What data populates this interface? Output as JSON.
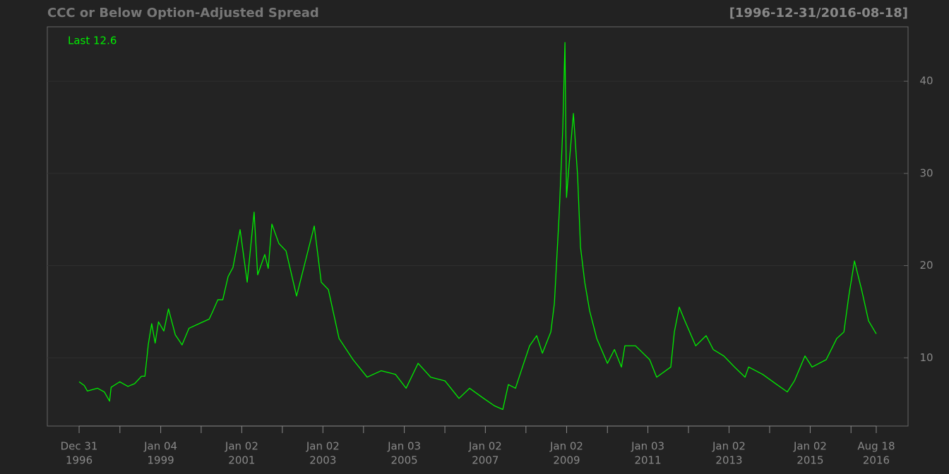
{
  "chart_data": {
    "type": "line",
    "title": "CCC or Below Option-Adjusted Spread",
    "subtitle": "[1996-12-31/2016-08-18]",
    "annotation": "Last 12.6",
    "grid": true,
    "xlim": [
      "1996-03-20",
      "2017-05-31"
    ],
    "ylim": [
      2.6,
      45.9
    ],
    "yticks": [
      10,
      20,
      30,
      40
    ],
    "xticks": [
      {
        "value": "1996-12-31",
        "label": [
          "Dec 31",
          "1996"
        ]
      },
      {
        "value": "1999-01-04",
        "label": [
          "Jan 04",
          "1999"
        ]
      },
      {
        "value": "2001-01-02",
        "label": [
          "Jan 02",
          "2001"
        ]
      },
      {
        "value": "2003-01-02",
        "label": [
          "Jan 02",
          "2003"
        ]
      },
      {
        "value": "2005-01-03",
        "label": [
          "Jan 03",
          "2005"
        ]
      },
      {
        "value": "2007-01-02",
        "label": [
          "Jan 02",
          "2007"
        ]
      },
      {
        "value": "2009-01-02",
        "label": [
          "Jan 02",
          "2009"
        ]
      },
      {
        "value": "2011-01-03",
        "label": [
          "Jan 03",
          "2011"
        ]
      },
      {
        "value": "2013-01-02",
        "label": [
          "Jan 02",
          "2013"
        ]
      },
      {
        "value": "2015-01-02",
        "label": [
          "Jan 02",
          "2015"
        ]
      },
      {
        "value": "2016-08-18",
        "label": [
          "Aug 18",
          "2016"
        ]
      }
    ],
    "xminorticks": [
      "1998-01-02",
      "2000-01-03",
      "2002-01-02",
      "2004-01-02",
      "2006-01-03",
      "2008-01-02",
      "2010-01-04",
      "2012-01-03",
      "2014-01-02",
      "2016-01-04"
    ],
    "series": [
      {
        "name": "CCC or Below Option-Adjusted Spread",
        "color": "#00ee00",
        "x": [
          "1996-12-31",
          "1997-02-15",
          "1997-03-15",
          "1997-06-15",
          "1997-08-15",
          "1997-10-01",
          "1997-10-15",
          "1998-01-01",
          "1998-03-15",
          "1998-05-15",
          "1998-07-15",
          "1998-08-15",
          "1998-09-15",
          "1998-10-15",
          "1998-11-15",
          "1998-12-15",
          "1999-02-01",
          "1999-03-15",
          "1999-05-15",
          "1999-07-15",
          "1999-09-15",
          "2000-01-01",
          "2000-03-15",
          "2000-04-15",
          "2000-06-01",
          "2000-07-15",
          "2000-09-01",
          "2000-10-15",
          "2000-12-18",
          "2001-02-20",
          "2001-04-23",
          "2001-05-25",
          "2001-07-28",
          "2001-08-28",
          "2001-09-30",
          "2001-12-02",
          "2002-02-04",
          "2002-05-10",
          "2002-07-12",
          "2002-10-16",
          "2002-12-18",
          "2003-02-20",
          "2003-05-27",
          "2003-09-30",
          "2004-02-04",
          "2004-06-10",
          "2004-10-16",
          "2005-01-19",
          "2005-05-07",
          "2005-08-28",
          "2006-01-04",
          "2006-05-10",
          "2006-08-13",
          "2006-12-18",
          "2007-03-24",
          "2007-06-08",
          "2007-07-28",
          "2007-09-30",
          "2007-12-02",
          "2008-02-04",
          "2008-04-08",
          "2008-05-29",
          "2008-08-13",
          "2008-09-14",
          "2008-10-28",
          "2008-11-29",
          "2008-12-18",
          "2009-01-01",
          "2009-01-26",
          "2009-03-04",
          "2009-04-11",
          "2009-05-07",
          "2009-06-14",
          "2009-07-28",
          "2009-09-30",
          "2010-01-04",
          "2010-03-08",
          "2010-05-10",
          "2010-06-10",
          "2010-09-14",
          "2011-01-19",
          "2011-03-23",
          "2011-07-28",
          "2011-08-29",
          "2011-10-12",
          "2011-12-02",
          "2012-03-08",
          "2012-06-10",
          "2012-08-13",
          "2012-11-16",
          "2013-02-20",
          "2013-05-26",
          "2013-06-27",
          "2013-11-01",
          "2014-03-08",
          "2014-06-10",
          "2014-08-13",
          "2014-11-16",
          "2015-01-19",
          "2015-05-26",
          "2015-08-29",
          "2015-11-01",
          "2015-12-15",
          "2016-02-04",
          "2016-04-08",
          "2016-06-10",
          "2016-08-18"
        ],
        "values": [
          7.4,
          7.0,
          6.4,
          6.7,
          6.3,
          5.3,
          6.8,
          7.4,
          6.9,
          7.2,
          8.0,
          8.0,
          11.5,
          13.7,
          11.6,
          13.9,
          12.9,
          15.3,
          12.5,
          11.4,
          13.2,
          13.8,
          14.2,
          15.0,
          16.3,
          16.3,
          18.8,
          19.8,
          23.9,
          18.2,
          25.8,
          19.0,
          21.2,
          19.7,
          24.5,
          22.4,
          21.6,
          16.7,
          19.7,
          24.3,
          18.2,
          17.4,
          12.1,
          9.8,
          7.9,
          8.6,
          8.2,
          6.7,
          9.4,
          7.9,
          7.5,
          5.6,
          6.7,
          5.6,
          4.8,
          4.4,
          7.1,
          6.7,
          9.0,
          11.3,
          12.4,
          10.5,
          12.8,
          15.9,
          25.8,
          35.0,
          44.2,
          27.4,
          31.2,
          36.5,
          29.7,
          22.0,
          18.2,
          15.1,
          12.1,
          9.4,
          10.9,
          9.0,
          11.3,
          11.3,
          9.8,
          7.9,
          9.0,
          12.8,
          15.5,
          14.0,
          11.3,
          12.4,
          10.9,
          10.2,
          9.0,
          7.9,
          9.0,
          8.2,
          7.1,
          6.3,
          7.5,
          10.2,
          9.0,
          9.8,
          12.1,
          12.8,
          16.7,
          20.5,
          17.4,
          14.0,
          12.6
        ]
      }
    ]
  }
}
